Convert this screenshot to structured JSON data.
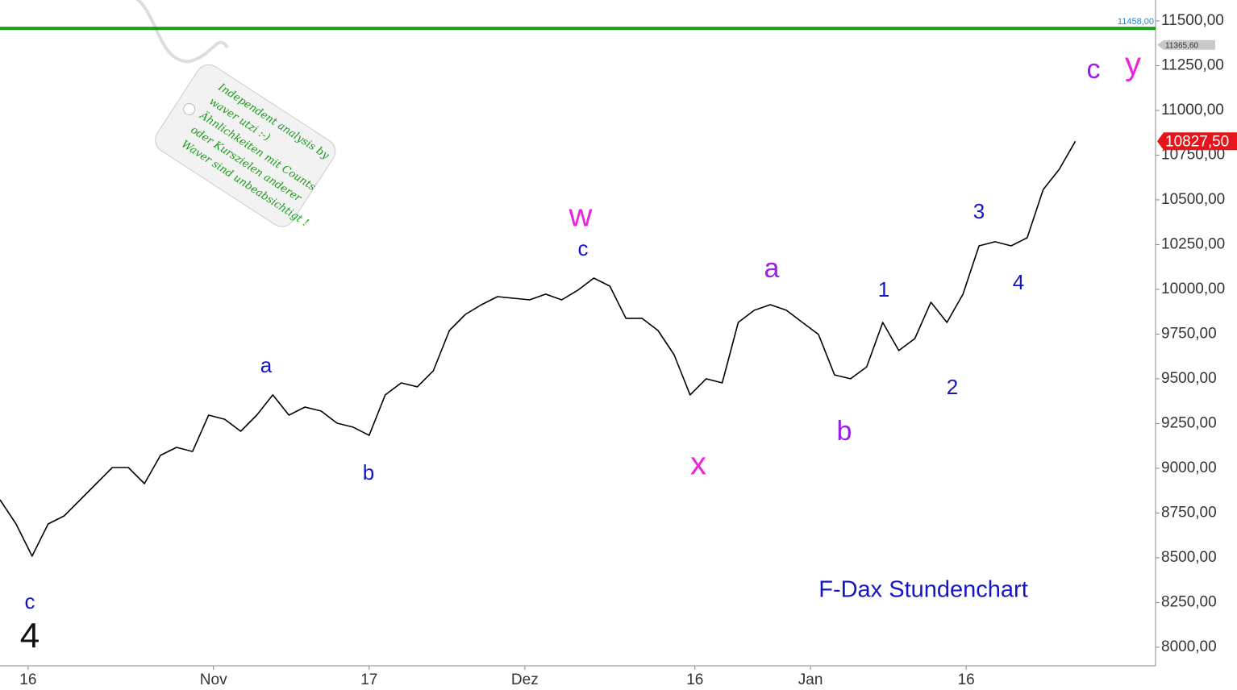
{
  "chart_data": {
    "type": "line",
    "title": "F-Dax Stundenchart",
    "x": [
      0,
      1,
      2,
      3,
      4,
      5,
      6,
      7,
      8,
      9,
      10,
      11,
      12,
      13,
      14,
      15,
      16,
      17,
      18,
      19,
      20,
      21,
      22,
      23,
      24,
      25,
      26,
      27,
      28,
      29,
      30,
      31,
      32,
      33,
      34,
      35,
      36,
      37,
      38,
      39,
      40,
      41,
      42,
      43,
      44,
      45,
      46,
      47,
      48,
      49,
      50,
      51,
      52,
      53,
      54,
      55,
      56,
      57,
      58,
      59,
      60,
      61,
      62,
      63,
      64,
      65,
      66,
      67
    ],
    "series": [
      {
        "color": "#000000",
        "values": [
          8824,
          8689,
          8509,
          8689,
          8734,
          8824,
          8914,
          9004,
          9004,
          8914,
          9072,
          9117,
          9094,
          9297,
          9274,
          9207,
          9297,
          9410,
          9297,
          9342,
          9320,
          9252,
          9230,
          9184,
          9410,
          9477,
          9455,
          9545,
          9770,
          9860,
          9914,
          9959,
          9950,
          9941,
          9973,
          9941,
          9995,
          10063,
          10018,
          9838,
          9838,
          9770,
          9635,
          9410,
          9500,
          9477,
          9815,
          9883,
          9914,
          9883,
          9815,
          9748,
          9522,
          9500,
          9567,
          9815,
          9658,
          9725,
          9928,
          9815,
          9973,
          10243,
          10266,
          10243,
          10288,
          10558,
          10671,
          10827.5
        ]
      }
    ],
    "xlim": [
      0,
      72
    ],
    "xticks": [
      {
        "value": 1.75,
        "label": "16"
      },
      {
        "value": 13.3,
        "label": "Nov"
      },
      {
        "value": 23,
        "label": "17"
      },
      {
        "value": 32.7,
        "label": "Dez"
      },
      {
        "value": 43.3,
        "label": "16"
      },
      {
        "value": 50.5,
        "label": "Jan"
      },
      {
        "value": 60.2,
        "label": "16"
      }
    ],
    "ylim": [
      7896,
      11617
    ],
    "yticks": [
      {
        "value": 8000,
        "label": "8000,00"
      },
      {
        "value": 8250,
        "label": "8250,00"
      },
      {
        "value": 8500,
        "label": "8500,00"
      },
      {
        "value": 8750,
        "label": "8750,00"
      },
      {
        "value": 9000,
        "label": "9000,00"
      },
      {
        "value": 9250,
        "label": "9250,00"
      },
      {
        "value": 9500,
        "label": "9500,00"
      },
      {
        "value": 9750,
        "label": "9750,00"
      },
      {
        "value": 10000,
        "label": "10000,00"
      },
      {
        "value": 10250,
        "label": "10250,00"
      },
      {
        "value": 10500,
        "label": "10500,00"
      },
      {
        "value": 10750,
        "label": "10750,00"
      },
      {
        "value": 11000,
        "label": "11000,00"
      },
      {
        "value": 11250,
        "label": "11250,00"
      },
      {
        "value": 11500,
        "label": "11500,00"
      }
    ],
    "reference_line": {
      "value": 11458,
      "label": "11458,00",
      "color": "#1a9a1a"
    },
    "markers": [
      {
        "value": 11365.6,
        "label": "11365,60",
        "color": "#c8c8c8"
      },
      {
        "value": 10827.5,
        "label": "10827,50",
        "color": "#e8141c"
      }
    ],
    "annotations": [
      {
        "text": "c",
        "color": "#1515c8"
      },
      {
        "text": "4",
        "color": "#111111"
      },
      {
        "text": "a",
        "color": "#1515c8"
      },
      {
        "text": "b",
        "color": "#1515c8"
      },
      {
        "text": "w",
        "color": "#ee22dd"
      },
      {
        "text": "c",
        "color": "#1515c8"
      },
      {
        "text": "x",
        "color": "#ee22dd"
      },
      {
        "text": "a",
        "color": "#9a1ee6"
      },
      {
        "text": "b",
        "color": "#9a1ee6"
      },
      {
        "text": "1",
        "color": "#1515c8"
      },
      {
        "text": "2",
        "color": "#1515c8"
      },
      {
        "text": "3",
        "color": "#1515c8"
      },
      {
        "text": "4",
        "color": "#1515c8"
      },
      {
        "text": "c",
        "color": "#9a1ee6"
      },
      {
        "text": "y",
        "color": "#ee22dd"
      }
    ],
    "tag_lines": [
      "Independent analysis by",
      "waver utzi :-)",
      "Ähnlichkeiten mit Counts",
      "oder Kurszielen anderer",
      "Waver sind unbeabsichtigt !"
    ]
  }
}
